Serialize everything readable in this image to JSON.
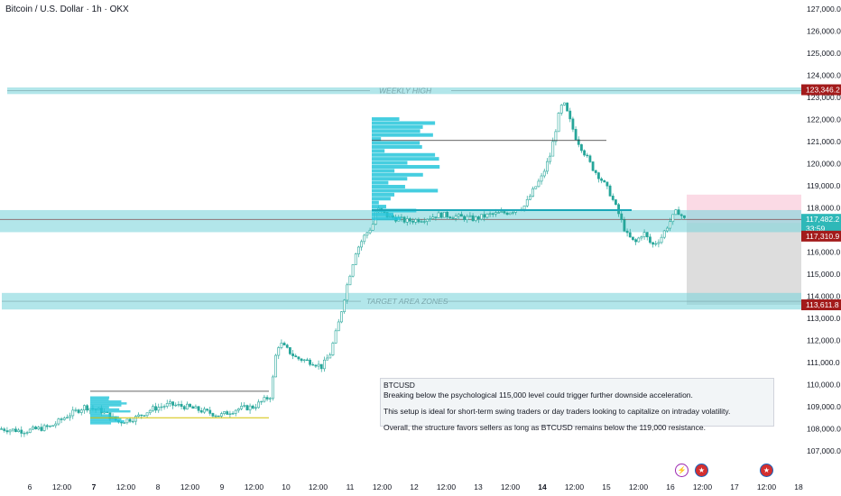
{
  "header": {
    "title": "Bitcoin / U.S. Dollar · 1h · OKX"
  },
  "zones": {
    "weekly_high": {
      "label": "WEEKLY HIGH",
      "low": 123150,
      "high": 123450
    },
    "middle": {
      "low": 116900,
      "high": 117900
    },
    "target": {
      "label": "TARGET AREA ZONES",
      "low": 113400,
      "high": 114150
    },
    "upper_box": {
      "low": 117300,
      "high": 118600
    },
    "lower_box": {
      "low": 113611.8,
      "high": 117310.9
    }
  },
  "price_tags": [
    {
      "value": "123,346.2",
      "price": 123346.2,
      "color": "#a31b1b"
    },
    {
      "value": "117,482.2",
      "price": 117482.2,
      "color": "#2eb8b8"
    },
    {
      "value": "33:59",
      "price": 117070,
      "color": "#2eb8b8"
    },
    {
      "value": "117,310.9",
      "price": 116720,
      "color": "#a31b1b"
    },
    {
      "value": "113,611.8",
      "price": 113611.8,
      "color": "#a31b1b"
    }
  ],
  "note": {
    "title": "BTCUSD",
    "line1": "Breaking below the psychological 115,000 level could trigger further downside acceleration.",
    "line2": "This setup is ideal for short-term swing traders or day traders looking to capitalize on intraday volatility.",
    "line3": "Overall, the structure favors sellers as long as BTCUSD remains below the 119,000 resistance."
  },
  "icons": {
    "events": [
      "lightning-icon",
      "us-flag-icon",
      "us-flag-icon"
    ]
  },
  "colors": {
    "up": "#26c6da",
    "down": "#26c6da",
    "zone": "#7fd6dc",
    "profile": "#26c6da"
  },
  "chart_data": {
    "type": "candlestick",
    "ylim": [
      106500,
      127000
    ],
    "y_ticks": [
      "127,000.0",
      "126,000.0",
      "125,000.0",
      "124,000.0",
      "123,000.0",
      "122,000.0",
      "121,000.0",
      "120,000.0",
      "119,000.0",
      "118,000.0",
      "116,000.0",
      "115,000.0",
      "114,000.0",
      "113,000.0",
      "112,000.0",
      "111,000.0",
      "110,000.0",
      "109,000.0",
      "108,000.0",
      "107,000.0"
    ],
    "y_tick_values": [
      127000,
      126000,
      125000,
      124000,
      123000,
      122000,
      121000,
      120000,
      119000,
      118000,
      116000,
      115000,
      114000,
      113000,
      112000,
      111000,
      110000,
      109000,
      108000,
      107000
    ],
    "x_ticks": [
      "6",
      "12:00",
      "7",
      "12:00",
      "8",
      "12:00",
      "9",
      "12:00",
      "10",
      "12:00",
      "11",
      "12:00",
      "12",
      "12:00",
      "13",
      "12:00",
      "14",
      "12:00",
      "15",
      "12:00",
      "16",
      "12:00",
      "17",
      "12:00",
      "18"
    ],
    "x_tick_bold": [
      "7",
      "14"
    ],
    "path": [
      [
        0,
        108000
      ],
      [
        0.03,
        107900
      ],
      [
        0.06,
        108100
      ],
      [
        0.08,
        108600
      ],
      [
        0.1,
        109000
      ],
      [
        0.12,
        108800
      ],
      [
        0.14,
        108300
      ],
      [
        0.16,
        108500
      ],
      [
        0.18,
        108900
      ],
      [
        0.2,
        109100
      ],
      [
        0.22,
        109000
      ],
      [
        0.24,
        108800
      ],
      [
        0.26,
        108600
      ],
      [
        0.28,
        108900
      ],
      [
        0.3,
        109000
      ],
      [
        0.32,
        109500
      ],
      [
        0.325,
        111200
      ],
      [
        0.33,
        111900
      ],
      [
        0.35,
        111200
      ],
      [
        0.37,
        111000
      ],
      [
        0.38,
        110800
      ],
      [
        0.39,
        111400
      ],
      [
        0.4,
        112800
      ],
      [
        0.41,
        114500
      ],
      [
        0.42,
        116000
      ],
      [
        0.43,
        116700
      ],
      [
        0.44,
        117200
      ],
      [
        0.445,
        118000
      ],
      [
        0.45,
        117800
      ],
      [
        0.46,
        117600
      ],
      [
        0.48,
        117400
      ],
      [
        0.5,
        117500
      ],
      [
        0.52,
        117700
      ],
      [
        0.54,
        117600
      ],
      [
        0.56,
        117500
      ],
      [
        0.58,
        117700
      ],
      [
        0.6,
        117800
      ],
      [
        0.62,
        118100
      ],
      [
        0.63,
        118800
      ],
      [
        0.64,
        119400
      ],
      [
        0.65,
        120400
      ],
      [
        0.66,
        122200
      ],
      [
        0.665,
        122800
      ],
      [
        0.67,
        122300
      ],
      [
        0.68,
        121200
      ],
      [
        0.69,
        120500
      ],
      [
        0.7,
        119800
      ],
      [
        0.71,
        119300
      ],
      [
        0.72,
        118700
      ],
      [
        0.73,
        117800
      ],
      [
        0.74,
        116800
      ],
      [
        0.75,
        116400
      ],
      [
        0.76,
        116900
      ],
      [
        0.77,
        116300
      ],
      [
        0.78,
        116600
      ],
      [
        0.79,
        117300
      ],
      [
        0.8,
        117900
      ],
      [
        0.81,
        117400
      ]
    ],
    "time_range": [
      0,
      0.81
    ],
    "series": [
      {
        "name": "BTCUSD",
        "values": "path"
      }
    ]
  }
}
